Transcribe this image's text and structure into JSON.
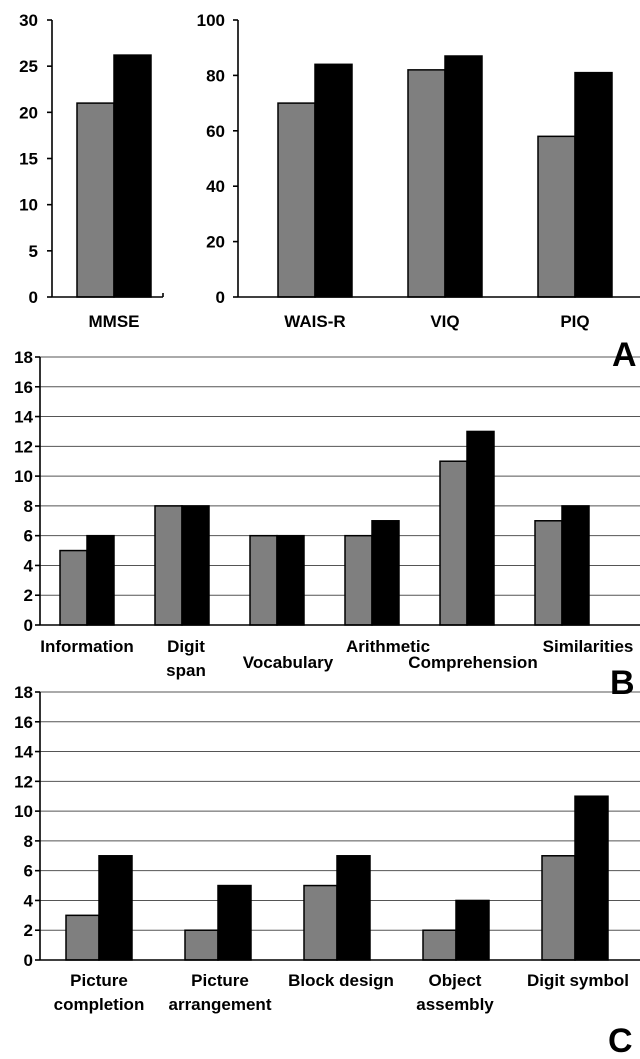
{
  "chart_data": [
    {
      "id": "mmse",
      "type": "bar",
      "categories": [
        "MMSE"
      ],
      "series": [
        {
          "values": [
            21
          ],
          "color": "#7f7f7f"
        },
        {
          "values": [
            26.2
          ],
          "color": "#000000"
        }
      ],
      "ylim": [
        0,
        30
      ],
      "yticks": [
        0,
        5,
        10,
        15,
        20,
        25,
        30
      ],
      "grid": false,
      "category_labels": [
        [
          "MMSE"
        ]
      ]
    },
    {
      "id": "iq",
      "type": "bar",
      "categories": [
        "WAIS-R",
        "VIQ",
        "PIQ"
      ],
      "series": [
        {
          "values": [
            70,
            82,
            58
          ],
          "color": "#7f7f7f"
        },
        {
          "values": [
            84,
            87,
            81
          ],
          "color": "#000000"
        }
      ],
      "ylim": [
        0,
        100
      ],
      "yticks": [
        0,
        20,
        40,
        60,
        80,
        100
      ],
      "grid": false,
      "category_labels": [
        [
          "WAIS-R"
        ],
        [
          "VIQ"
        ],
        [
          "PIQ"
        ]
      ],
      "panel_label": "A"
    },
    {
      "id": "verbal",
      "type": "bar",
      "categories": [
        "Information",
        "Digit span",
        "Vocabulary",
        "Arithmetic",
        "Comprehension",
        "Similarities"
      ],
      "series": [
        {
          "values": [
            5,
            8,
            6,
            6,
            11,
            7
          ],
          "color": "#7f7f7f"
        },
        {
          "values": [
            6,
            8,
            6,
            7,
            13,
            8
          ],
          "color": "#000000"
        }
      ],
      "ylim": [
        0,
        18
      ],
      "yticks": [
        0,
        2,
        4,
        6,
        8,
        10,
        12,
        14,
        16,
        18
      ],
      "grid": true,
      "category_labels": [
        [
          "Information"
        ],
        [
          "Digit",
          "span"
        ],
        [
          "Vocabulary"
        ],
        [
          "Arithmetic"
        ],
        [
          "Comprehension"
        ],
        [
          "Similarities"
        ]
      ],
      "panel_label": "B"
    },
    {
      "id": "performance",
      "type": "bar",
      "categories": [
        "Picture completion",
        "Picture arrangement",
        "Block design",
        "Object assembly",
        "Digit symbol"
      ],
      "series": [
        {
          "values": [
            3,
            2,
            5,
            2,
            7
          ],
          "color": "#7f7f7f"
        },
        {
          "values": [
            7,
            5,
            7,
            4,
            11
          ],
          "color": "#000000"
        }
      ],
      "ylim": [
        0,
        18
      ],
      "yticks": [
        0,
        2,
        4,
        6,
        8,
        10,
        12,
        14,
        16,
        18
      ],
      "grid": true,
      "category_labels": [
        [
          "Picture",
          "completion"
        ],
        [
          "Picture",
          "arrangement"
        ],
        [
          "Block design"
        ],
        [
          "Object",
          "assembly"
        ],
        [
          "Digit symbol"
        ]
      ],
      "panel_label": "C"
    }
  ]
}
